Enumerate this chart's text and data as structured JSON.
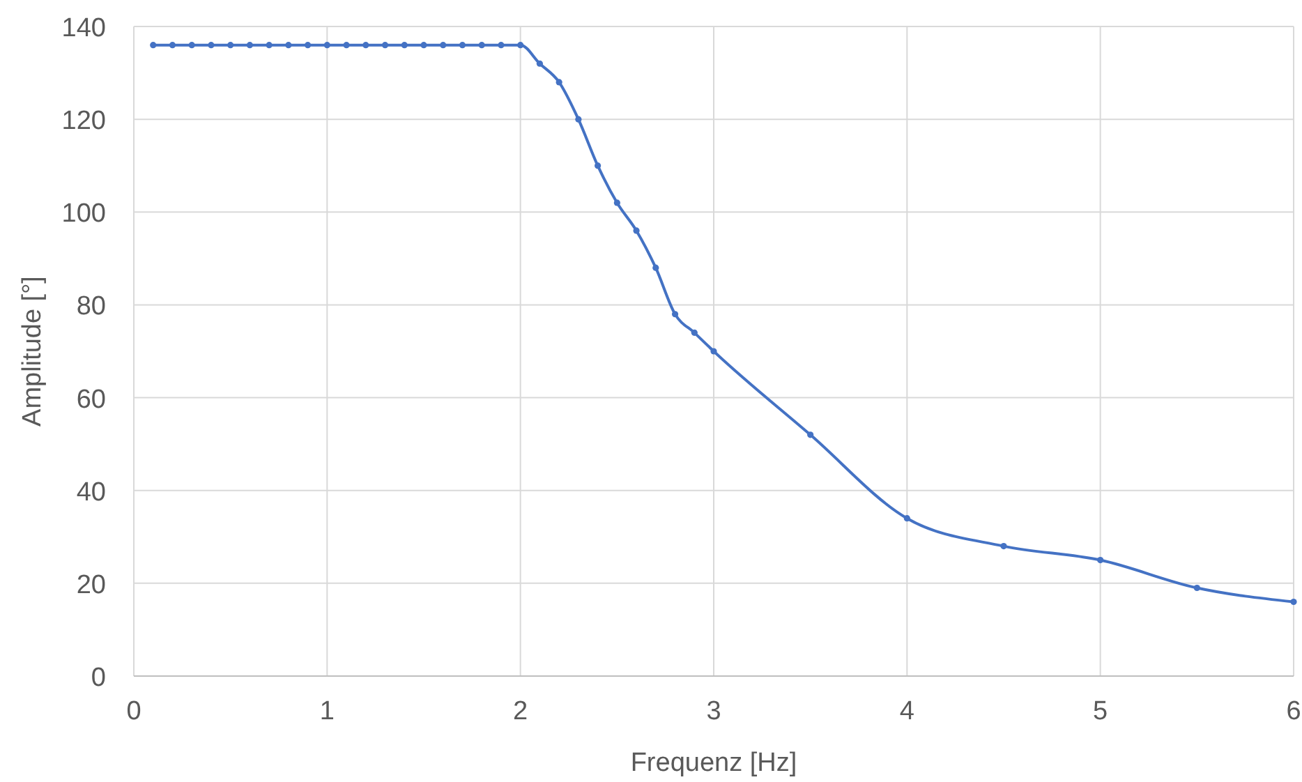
{
  "chart_data": {
    "type": "line",
    "xlabel": "Frequenz [Hz]",
    "ylabel": "Amplitude [°]",
    "x": [
      0.1,
      0.2,
      0.3,
      0.4,
      0.5,
      0.6,
      0.7,
      0.8,
      0.9,
      1.0,
      1.1,
      1.2,
      1.3,
      1.4,
      1.5,
      1.6,
      1.7,
      1.8,
      1.9,
      2.0,
      2.1,
      2.2,
      2.3,
      2.4,
      2.5,
      2.6,
      2.7,
      2.8,
      2.9,
      3.0,
      3.5,
      4.0,
      4.5,
      5.0,
      5.5,
      6.0
    ],
    "series": [
      {
        "color": "#4472c4",
        "values": [
          136,
          136,
          136,
          136,
          136,
          136,
          136,
          136,
          136,
          136,
          136,
          136,
          136,
          136,
          136,
          136,
          136,
          136,
          136,
          136,
          132,
          128,
          120,
          110,
          102,
          96,
          88,
          78,
          74,
          70,
          52,
          34,
          28,
          25,
          19,
          16
        ]
      }
    ],
    "xlim": [
      0,
      6
    ],
    "xticks": [
      0,
      1,
      2,
      3,
      4,
      5,
      6
    ],
    "ylim": [
      0,
      140
    ],
    "yticks": [
      0,
      20,
      40,
      60,
      80,
      100,
      120,
      140
    ],
    "grid": true,
    "marker": "circle",
    "line_style": "solid"
  }
}
